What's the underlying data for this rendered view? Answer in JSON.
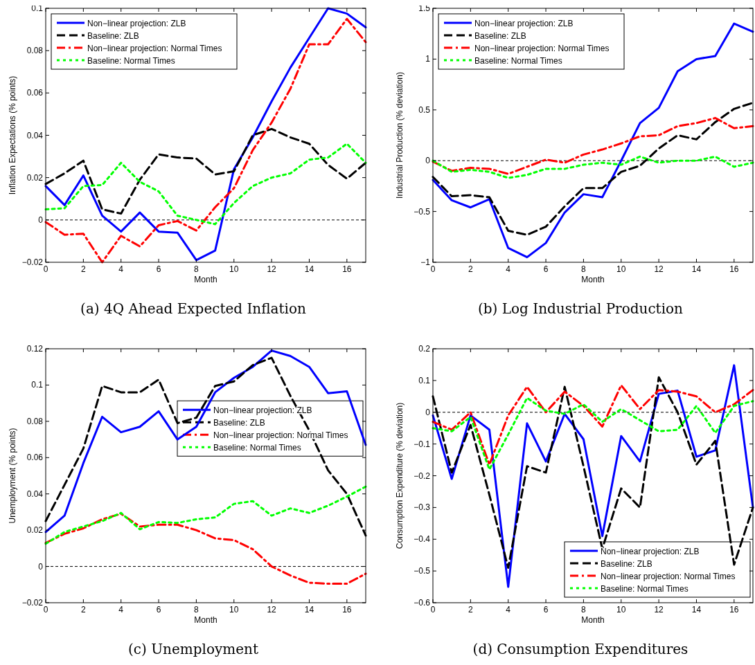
{
  "chart_data": [
    {
      "type": "line",
      "title": "(a) 4Q Ahead Expected Inflation",
      "xlabel": "Month",
      "ylabel": "Inflation Expectations (% points)",
      "x": [
        0,
        1,
        2,
        3,
        4,
        5,
        6,
        7,
        8,
        9,
        10,
        11,
        12,
        13,
        14,
        15,
        16,
        17
      ],
      "xlim": [
        0,
        17
      ],
      "xticks": [
        0,
        2,
        4,
        6,
        8,
        10,
        12,
        14,
        16
      ],
      "ylim": [
        -0.02,
        0.1
      ],
      "yticks": [
        -0.02,
        0,
        0.02,
        0.04,
        0.06,
        0.08,
        0.1
      ],
      "legend": "top left",
      "ref_lines": [
        {
          "axis": "y",
          "value": 0,
          "color": "#000000",
          "line_style": "dashed"
        }
      ],
      "series": [
        {
          "name": "Non−linear projection: ZLB",
          "color": "#0000ff",
          "line_style": "solid",
          "values": [
            0.016,
            0.007,
            0.021,
            0.002,
            -0.0055,
            0.0035,
            -0.0055,
            -0.006,
            -0.019,
            -0.0145,
            0.024,
            0.039,
            0.056,
            0.072,
            0.086,
            0.1,
            0.0975,
            0.091
          ]
        },
        {
          "name": "Baseline: ZLB",
          "color": "#000000",
          "line_style": "dashed",
          "values": [
            0.017,
            0.022,
            0.028,
            0.005,
            0.003,
            0.019,
            0.031,
            0.0295,
            0.029,
            0.0215,
            0.023,
            0.04,
            0.043,
            0.039,
            0.036,
            0.026,
            0.0195,
            0.027
          ]
        },
        {
          "name": "Non−linear projection: Normal Times",
          "color": "#ff0000",
          "line_style": "dashdot",
          "values": [
            -0.001,
            -0.007,
            -0.0065,
            -0.02,
            -0.0075,
            -0.0125,
            -0.0025,
            -0.0005,
            -0.005,
            0.006,
            0.015,
            0.033,
            0.046,
            0.062,
            0.083,
            0.083,
            0.095,
            0.084
          ]
        },
        {
          "name": "Baseline: Normal Times",
          "color": "#00ff00",
          "line_style": "dotted",
          "values": [
            0.005,
            0.0055,
            0.016,
            0.0165,
            0.027,
            0.018,
            0.0135,
            0.002,
            0,
            -0.002,
            0.008,
            0.016,
            0.02,
            0.022,
            0.0285,
            0.0295,
            0.036,
            0.027
          ]
        }
      ]
    },
    {
      "type": "line",
      "title": "(b) Log Industrial Production",
      "xlabel": "Month",
      "ylabel": "Industrial Production (% deviation)",
      "x": [
        0,
        1,
        2,
        3,
        4,
        5,
        6,
        7,
        8,
        9,
        10,
        11,
        12,
        13,
        14,
        15,
        16,
        17
      ],
      "xlim": [
        0,
        17
      ],
      "xticks": [
        0,
        2,
        4,
        6,
        8,
        10,
        12,
        14,
        16
      ],
      "ylim": [
        -1,
        1.5
      ],
      "yticks": [
        -1,
        -0.5,
        0,
        0.5,
        1,
        1.5
      ],
      "legend": "top left",
      "ref_lines": [
        {
          "axis": "y",
          "value": 0,
          "color": "#000000",
          "line_style": "dashed"
        }
      ],
      "series": [
        {
          "name": "Non−linear projection: ZLB",
          "color": "#0000ff",
          "line_style": "solid",
          "values": [
            -0.19,
            -0.39,
            -0.46,
            -0.38,
            -0.86,
            -0.95,
            -0.81,
            -0.51,
            -0.33,
            -0.36,
            0,
            0.37,
            0.52,
            0.88,
            1,
            1.03,
            1.35,
            1.27
          ]
        },
        {
          "name": "Baseline: ZLB",
          "color": "#000000",
          "line_style": "dashed",
          "values": [
            -0.16,
            -0.35,
            -0.34,
            -0.36,
            -0.69,
            -0.73,
            -0.65,
            -0.45,
            -0.27,
            -0.27,
            -0.11,
            -0.05,
            0.12,
            0.25,
            0.21,
            0.38,
            0.51,
            0.57
          ]
        },
        {
          "name": "Non−linear projection: Normal Times",
          "color": "#ff0000",
          "line_style": "dashdot",
          "values": [
            -0.01,
            -0.1,
            -0.07,
            -0.08,
            -0.13,
            -0.06,
            0.01,
            -0.02,
            0.06,
            0.11,
            0.17,
            0.24,
            0.25,
            0.34,
            0.37,
            0.42,
            0.32,
            0.34
          ]
        },
        {
          "name": "Baseline: Normal Times",
          "color": "#00ff00",
          "line_style": "dotted",
          "values": [
            0,
            -0.11,
            -0.09,
            -0.11,
            -0.17,
            -0.14,
            -0.08,
            -0.08,
            -0.04,
            -0.02,
            -0.04,
            0.04,
            -0.02,
            0,
            0,
            0.04,
            -0.06,
            -0.02
          ]
        }
      ]
    },
    {
      "type": "line",
      "title": "(c) Unemployment",
      "xlabel": "Month",
      "ylabel": "Unemployment (% points)",
      "x": [
        0,
        1,
        2,
        3,
        4,
        5,
        6,
        7,
        8,
        9,
        10,
        11,
        12,
        13,
        14,
        15,
        16,
        17
      ],
      "xlim": [
        0,
        17
      ],
      "xticks": [
        0,
        2,
        4,
        6,
        8,
        10,
        12,
        14,
        16
      ],
      "ylim": [
        -0.02,
        0.12
      ],
      "yticks": [
        -0.02,
        0,
        0.02,
        0.04,
        0.06,
        0.08,
        0.1,
        0.12
      ],
      "legend": "right",
      "ref_lines": [
        {
          "axis": "y",
          "value": 0,
          "color": "#000000",
          "line_style": "dashed"
        }
      ],
      "series": [
        {
          "name": "Non−linear projection: ZLB",
          "color": "#0000ff",
          "line_style": "solid",
          "values": [
            0.019,
            0.028,
            0.057,
            0.0825,
            0.074,
            0.077,
            0.0855,
            0.07,
            0.077,
            0.096,
            0.104,
            0.11,
            0.119,
            0.116,
            0.11,
            0.0955,
            0.0965,
            0.067
          ]
        },
        {
          "name": "Baseline: ZLB",
          "color": "#000000",
          "line_style": "dashed",
          "values": [
            0.025,
            0.045,
            0.065,
            0.0995,
            0.096,
            0.096,
            0.103,
            0.079,
            0.082,
            0.0995,
            0.102,
            0.111,
            0.115,
            0.094,
            0.075,
            0.053,
            0.04,
            0.017
          ]
        },
        {
          "name": "Non−linear projection: Normal Times",
          "color": "#ff0000",
          "line_style": "dashdot",
          "values": [
            0.013,
            0.018,
            0.021,
            0.026,
            0.029,
            0.022,
            0.023,
            0.023,
            0.02,
            0.0155,
            0.0145,
            0.0095,
            0,
            -0.005,
            -0.009,
            -0.0095,
            -0.0095,
            -0.004
          ]
        },
        {
          "name": "Baseline: Normal Times",
          "color": "#00ff00",
          "line_style": "dotted",
          "values": [
            0.0125,
            0.019,
            0.022,
            0.025,
            0.0295,
            0.0205,
            0.0245,
            0.024,
            0.026,
            0.027,
            0.0345,
            0.036,
            0.028,
            0.032,
            0.0295,
            0.0335,
            0.0385,
            0.044
          ]
        }
      ]
    },
    {
      "type": "line",
      "title": "(d) Consumption Expenditures",
      "xlabel": "Month",
      "ylabel": "Consumption Expenditure (% deviation)",
      "x": [
        0,
        1,
        2,
        3,
        4,
        5,
        6,
        7,
        8,
        9,
        10,
        11,
        12,
        13,
        14,
        15,
        16,
        17
      ],
      "xlim": [
        0,
        17
      ],
      "xticks": [
        0,
        2,
        4,
        6,
        8,
        10,
        12,
        14,
        16
      ],
      "ylim": [
        -0.6,
        0.2
      ],
      "yticks": [
        -0.6,
        -0.5,
        -0.4,
        -0.3,
        -0.2,
        -0.1,
        0,
        0.1,
        0.2
      ],
      "legend": "bottom right",
      "ref_lines": [
        {
          "axis": "y",
          "value": 0,
          "color": "#000000",
          "line_style": "dashed"
        }
      ],
      "series": [
        {
          "name": "Non−linear projection: ZLB",
          "color": "#0000ff",
          "line_style": "solid",
          "values": [
            -0.01,
            -0.21,
            -0.01,
            -0.055,
            -0.55,
            -0.035,
            -0.155,
            -0.005,
            -0.085,
            -0.39,
            -0.075,
            -0.155,
            0.058,
            0.068,
            -0.14,
            -0.12,
            0.148,
            -0.3
          ]
        },
        {
          "name": "Baseline: ZLB",
          "color": "#000000",
          "line_style": "dashed",
          "values": [
            0.05,
            -0.19,
            -0.04,
            -0.26,
            -0.49,
            -0.17,
            -0.19,
            0.08,
            -0.17,
            -0.43,
            -0.24,
            -0.3,
            0.11,
            0,
            -0.165,
            -0.09,
            -0.48,
            -0.3
          ]
        },
        {
          "name": "Non−linear projection: Normal Times",
          "color": "#ff0000",
          "line_style": "dashdot",
          "values": [
            -0.03,
            -0.055,
            0,
            -0.165,
            -0.01,
            0.08,
            0,
            0.065,
            0.02,
            -0.045,
            0.085,
            0.01,
            0.07,
            0.065,
            0.05,
            0,
            0.025,
            0.07
          ]
        },
        {
          "name": "Baseline: Normal Times",
          "color": "#00ff00",
          "line_style": "dotted",
          "values": [
            -0.05,
            -0.06,
            -0.015,
            -0.18,
            -0.07,
            0.045,
            0.005,
            -0.005,
            0.025,
            -0.03,
            0.01,
            -0.025,
            -0.06,
            -0.055,
            0.02,
            -0.065,
            0.02,
            0.035
          ]
        }
      ]
    }
  ]
}
